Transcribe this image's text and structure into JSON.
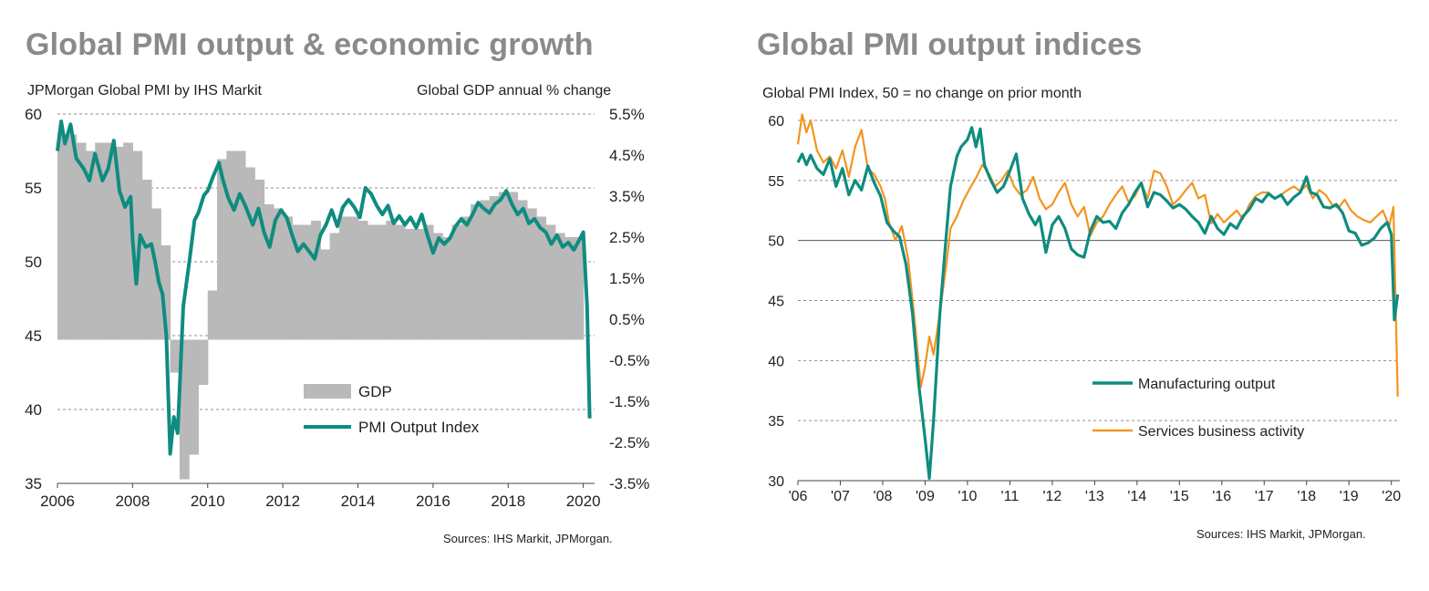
{
  "colors": {
    "title": "#8a8a8a",
    "gdp_fill": "#b9b9b9",
    "pmi": "#0f8c80",
    "manufacturing": "#0f8c80",
    "services": "#f3941e",
    "grid": "#8f8f8f"
  },
  "left": {
    "title": "Global PMI output & economic growth",
    "subtitle_left": "JPMorgan  Global PMI by IHS Markit",
    "subtitle_right": "Global GDP annual % change",
    "source": "Sources: IHS Markit, JPMorgan."
  },
  "right": {
    "title": "Global PMI output indices",
    "subtitle": "Global  PMI Index, 50 = no change on prior month",
    "source": "Sources: IHS Markit, JPMorgan."
  },
  "chart_data": [
    {
      "type": "line",
      "title": "Global PMI output & economic growth",
      "grid": true,
      "legend": "bottom-center",
      "x_ticks": [
        "2006",
        "2008",
        "2010",
        "2012",
        "2014",
        "2016",
        "2018",
        "2020"
      ],
      "y_left": {
        "label": "JPMorgan  Global PMI by IHS Markit",
        "ylim": [
          35,
          60
        ],
        "ticks": [
          "60",
          "55",
          "50",
          "45",
          "40",
          "35"
        ]
      },
      "y_right": {
        "label": "Global GDP annual % change",
        "ylim": [
          -3.5,
          5.5
        ],
        "ticks": [
          "5.5%",
          "4.5%",
          "3.5%",
          "2.5%",
          "1.5%",
          "0.5%",
          "-0.5%",
          "-1.5%",
          "-2.5%",
          "-3.5%"
        ]
      },
      "series": [
        {
          "name": "GDP",
          "kind": "bar",
          "axis": "right",
          "x": [
            2006.0,
            2006.25,
            2006.5,
            2006.75,
            2007.0,
            2007.25,
            2007.5,
            2007.75,
            2008.0,
            2008.25,
            2008.5,
            2008.75,
            2009.0,
            2009.25,
            2009.5,
            2009.75,
            2010.0,
            2010.25,
            2010.5,
            2010.75,
            2011.0,
            2011.25,
            2011.5,
            2011.75,
            2012.0,
            2012.25,
            2012.5,
            2012.75,
            2013.0,
            2013.25,
            2013.5,
            2013.75,
            2014.0,
            2014.25,
            2014.5,
            2014.75,
            2015.0,
            2015.25,
            2015.5,
            2015.75,
            2016.0,
            2016.25,
            2016.5,
            2016.75,
            2017.0,
            2017.25,
            2017.5,
            2017.75,
            2018.0,
            2018.25,
            2018.5,
            2018.75,
            2019.0,
            2019.25,
            2019.5,
            2019.75
          ],
          "values": [
            5.0,
            5.0,
            4.8,
            4.6,
            4.8,
            4.8,
            4.7,
            4.8,
            4.6,
            3.9,
            3.2,
            2.3,
            -0.8,
            -3.4,
            -2.8,
            -1.1,
            1.2,
            4.4,
            4.6,
            4.6,
            4.2,
            3.9,
            3.3,
            3.2,
            3.0,
            2.8,
            2.8,
            2.9,
            2.2,
            2.6,
            3.0,
            3.0,
            2.9,
            2.8,
            2.8,
            2.9,
            2.8,
            2.7,
            2.7,
            2.8,
            2.6,
            2.5,
            2.8,
            3.0,
            3.3,
            3.4,
            3.5,
            3.6,
            3.6,
            3.4,
            3.2,
            3.0,
            2.8,
            2.6,
            2.5,
            2.5
          ]
        },
        {
          "name": "PMI Output Index",
          "kind": "line",
          "axis": "left",
          "x": [
            2006.0,
            2006.1,
            2006.2,
            2006.35,
            2006.5,
            2006.7,
            2006.85,
            2007.0,
            2007.2,
            2007.35,
            2007.5,
            2007.65,
            2007.8,
            2007.95,
            2008.0,
            2008.1,
            2008.2,
            2008.35,
            2008.5,
            2008.6,
            2008.7,
            2008.8,
            2008.9,
            2009.0,
            2009.1,
            2009.2,
            2009.35,
            2009.5,
            2009.65,
            2009.75,
            2009.9,
            2010.0,
            2010.15,
            2010.3,
            2010.4,
            2010.55,
            2010.7,
            2010.85,
            2011.0,
            2011.2,
            2011.35,
            2011.5,
            2011.65,
            2011.8,
            2011.95,
            2012.1,
            2012.25,
            2012.4,
            2012.55,
            2012.7,
            2012.85,
            2013.0,
            2013.15,
            2013.3,
            2013.45,
            2013.6,
            2013.75,
            2013.9,
            2014.05,
            2014.2,
            2014.35,
            2014.5,
            2014.65,
            2014.8,
            2014.95,
            2015.1,
            2015.25,
            2015.4,
            2015.55,
            2015.7,
            2015.85,
            2016.0,
            2016.15,
            2016.3,
            2016.45,
            2016.6,
            2016.75,
            2016.9,
            2017.05,
            2017.2,
            2017.35,
            2017.5,
            2017.65,
            2017.8,
            2017.95,
            2018.1,
            2018.25,
            2018.4,
            2018.55,
            2018.7,
            2018.85,
            2019.0,
            2019.15,
            2019.3,
            2019.45,
            2019.6,
            2019.75,
            2019.9,
            2020.0,
            2020.1,
            2020.17
          ],
          "values": [
            57.5,
            59.5,
            58.0,
            59.3,
            57.0,
            56.3,
            55.5,
            57.3,
            55.5,
            56.3,
            58.2,
            54.8,
            53.7,
            54.4,
            51.5,
            48.5,
            51.8,
            51.0,
            51.2,
            50.0,
            48.6,
            47.8,
            45.0,
            37.0,
            39.5,
            38.4,
            47.0,
            49.8,
            52.8,
            53.3,
            54.5,
            54.8,
            55.8,
            56.7,
            55.6,
            54.3,
            53.5,
            54.6,
            53.8,
            52.5,
            53.6,
            52.0,
            51.0,
            52.8,
            53.5,
            53.0,
            51.8,
            50.7,
            51.2,
            50.7,
            50.2,
            51.8,
            52.5,
            53.5,
            52.4,
            53.7,
            54.2,
            53.7,
            53.0,
            55.0,
            54.6,
            53.8,
            53.2,
            53.8,
            52.6,
            53.1,
            52.5,
            53.0,
            52.3,
            53.2,
            51.8,
            50.6,
            51.6,
            51.2,
            51.6,
            52.4,
            52.9,
            52.5,
            53.2,
            54.0,
            53.6,
            53.3,
            53.9,
            54.2,
            54.8,
            53.9,
            53.2,
            53.6,
            52.6,
            52.9,
            52.3,
            52.0,
            51.2,
            51.8,
            51.0,
            51.3,
            50.8,
            51.5,
            52.0,
            47.0,
            39.4
          ]
        }
      ]
    },
    {
      "type": "line",
      "title": "Global PMI output indices",
      "grid": true,
      "legend": "bottom-center",
      "x_ticks": [
        "'06",
        "'07",
        "'08",
        "'09",
        "'10",
        "'11",
        "'12",
        "'13",
        "'14",
        "'15",
        "'16",
        "'17",
        "'18",
        "'19",
        "'20"
      ],
      "y_label": "Global  PMI Index, 50 = no change on prior month",
      "ylim": [
        30,
        60
      ],
      "y_ticks": [
        "60",
        "55",
        "50",
        "45",
        "40",
        "35",
        "30"
      ],
      "series": [
        {
          "name": "Manufacturing output",
          "x": [
            2006.0,
            2006.1,
            2006.2,
            2006.3,
            2006.45,
            2006.6,
            2006.75,
            2006.9,
            2007.05,
            2007.2,
            2007.35,
            2007.5,
            2007.65,
            2007.8,
            2007.95,
            2008.1,
            2008.25,
            2008.4,
            2008.55,
            2008.7,
            2008.85,
            2009.0,
            2009.1,
            2009.2,
            2009.35,
            2009.5,
            2009.6,
            2009.75,
            2009.85,
            2010.0,
            2010.1,
            2010.2,
            2010.3,
            2010.4,
            2010.55,
            2010.7,
            2010.85,
            2011.0,
            2011.15,
            2011.3,
            2011.45,
            2011.6,
            2011.7,
            2011.85,
            2012.0,
            2012.15,
            2012.3,
            2012.45,
            2012.6,
            2012.75,
            2012.9,
            2013.05,
            2013.2,
            2013.35,
            2013.5,
            2013.65,
            2013.8,
            2013.95,
            2014.1,
            2014.25,
            2014.4,
            2014.55,
            2014.7,
            2014.85,
            2015.0,
            2015.15,
            2015.3,
            2015.45,
            2015.6,
            2015.75,
            2015.9,
            2016.05,
            2016.2,
            2016.35,
            2016.5,
            2016.65,
            2016.8,
            2016.95,
            2017.1,
            2017.25,
            2017.4,
            2017.55,
            2017.7,
            2017.85,
            2018.0,
            2018.1,
            2018.25,
            2018.4,
            2018.55,
            2018.7,
            2018.85,
            2019.0,
            2019.15,
            2019.3,
            2019.45,
            2019.6,
            2019.75,
            2019.9,
            2020.0,
            2020.07,
            2020.15
          ],
          "values": [
            56.5,
            57.2,
            56.3,
            57.1,
            56.0,
            55.5,
            56.8,
            54.5,
            56.0,
            53.8,
            55.0,
            54.2,
            56.2,
            54.8,
            53.7,
            51.5,
            50.8,
            50.3,
            48.0,
            44.0,
            38.0,
            33.5,
            30.2,
            35.0,
            44.0,
            50.5,
            54.5,
            57.0,
            57.8,
            58.4,
            59.4,
            57.8,
            59.3,
            56.3,
            55.0,
            54.0,
            54.5,
            55.8,
            57.2,
            53.5,
            52.2,
            51.3,
            52.0,
            49.0,
            51.3,
            52.0,
            51.0,
            49.3,
            48.8,
            48.6,
            50.8,
            52.0,
            51.5,
            51.6,
            51.0,
            52.3,
            53.0,
            54.0,
            54.8,
            52.8,
            54.0,
            53.8,
            53.3,
            52.7,
            53.0,
            52.6,
            52.0,
            51.5,
            50.6,
            52.0,
            51.0,
            50.5,
            51.4,
            51.0,
            52.0,
            52.6,
            53.5,
            53.2,
            53.9,
            53.5,
            53.8,
            53.0,
            53.6,
            54.0,
            55.3,
            54.0,
            53.8,
            52.8,
            52.7,
            53.0,
            52.3,
            50.8,
            50.6,
            49.6,
            49.8,
            50.2,
            51.0,
            51.5,
            50.5,
            43.4,
            45.5
          ]
        },
        {
          "name": "Services business activity",
          "x": [
            2006.0,
            2006.1,
            2006.2,
            2006.3,
            2006.45,
            2006.6,
            2006.75,
            2006.9,
            2007.05,
            2007.2,
            2007.35,
            2007.5,
            2007.65,
            2007.8,
            2007.95,
            2008.05,
            2008.15,
            2008.3,
            2008.45,
            2008.6,
            2008.75,
            2008.9,
            2009.0,
            2009.1,
            2009.2,
            2009.35,
            2009.5,
            2009.6,
            2009.75,
            2009.9,
            2010.05,
            2010.2,
            2010.35,
            2010.5,
            2010.65,
            2010.8,
            2010.95,
            2011.1,
            2011.25,
            2011.4,
            2011.55,
            2011.7,
            2011.85,
            2012.0,
            2012.15,
            2012.3,
            2012.45,
            2012.6,
            2012.75,
            2012.9,
            2013.05,
            2013.2,
            2013.35,
            2013.5,
            2013.65,
            2013.8,
            2013.95,
            2014.1,
            2014.25,
            2014.4,
            2014.55,
            2014.7,
            2014.85,
            2015.0,
            2015.15,
            2015.3,
            2015.45,
            2015.6,
            2015.75,
            2015.9,
            2016.05,
            2016.2,
            2016.35,
            2016.5,
            2016.65,
            2016.8,
            2016.95,
            2017.1,
            2017.25,
            2017.4,
            2017.55,
            2017.7,
            2017.85,
            2018.0,
            2018.15,
            2018.3,
            2018.45,
            2018.6,
            2018.75,
            2018.9,
            2019.05,
            2019.2,
            2019.35,
            2019.5,
            2019.65,
            2019.8,
            2019.95,
            2020.05,
            2020.15
          ],
          "values": [
            58.0,
            60.5,
            59.0,
            60.0,
            57.5,
            56.5,
            57.0,
            56.0,
            57.5,
            55.3,
            57.8,
            59.2,
            56.0,
            55.5,
            54.5,
            53.5,
            51.5,
            50.0,
            51.2,
            48.5,
            43.5,
            37.8,
            39.5,
            42.0,
            40.5,
            44.0,
            48.0,
            51.0,
            52.0,
            53.3,
            54.3,
            55.2,
            56.3,
            55.6,
            54.5,
            55.0,
            55.8,
            54.5,
            53.8,
            54.2,
            55.3,
            53.5,
            52.6,
            53.0,
            54.0,
            54.8,
            53.0,
            52.0,
            52.8,
            50.4,
            51.5,
            52.0,
            53.0,
            53.8,
            54.5,
            53.2,
            53.7,
            54.8,
            53.5,
            55.8,
            55.6,
            54.5,
            53.0,
            53.5,
            54.2,
            54.8,
            53.5,
            53.8,
            51.4,
            52.2,
            51.5,
            52.0,
            52.5,
            51.8,
            53.0,
            53.7,
            54.0,
            54.0,
            53.5,
            53.8,
            54.2,
            54.5,
            54.1,
            54.6,
            53.5,
            54.2,
            53.8,
            53.0,
            52.7,
            53.4,
            52.5,
            52.0,
            51.7,
            51.5,
            52.0,
            52.5,
            51.2,
            52.8,
            37.0
          ]
        }
      ]
    }
  ]
}
